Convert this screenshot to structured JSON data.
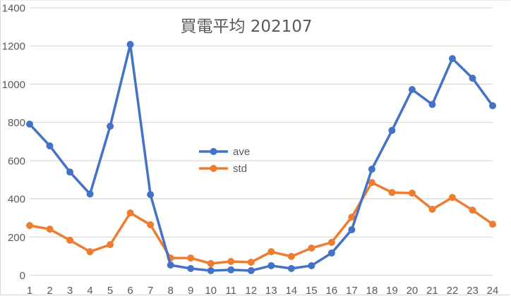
{
  "chart_data": {
    "type": "line",
    "title": "買電平均 202107",
    "xlabel": "",
    "ylabel": "",
    "categories": [
      "1",
      "2",
      "3",
      "4",
      "5",
      "6",
      "7",
      "8",
      "9",
      "10",
      "11",
      "12",
      "13",
      "14",
      "15",
      "16",
      "17",
      "18",
      "19",
      "20",
      "21",
      "22",
      "23",
      "24"
    ],
    "series": [
      {
        "name": "ave",
        "color": "#4472C4",
        "values": [
          791,
          677,
          540,
          425,
          780,
          1208,
          422,
          53,
          35,
          24,
          28,
          24,
          50,
          35,
          50,
          116,
          238,
          555,
          758,
          972,
          894,
          1134,
          1031,
          887
        ]
      },
      {
        "name": "std",
        "color": "#ED7D31",
        "values": [
          260,
          241,
          183,
          123,
          160,
          326,
          264,
          90,
          90,
          61,
          72,
          68,
          123,
          98,
          142,
          172,
          304,
          485,
          433,
          430,
          345,
          407,
          341,
          267
        ]
      }
    ],
    "ylim": [
      0,
      1400
    ],
    "yticks": [
      0,
      200,
      400,
      600,
      800,
      1000,
      1200,
      1400
    ],
    "grid": true,
    "legend_position": "inside-center-left",
    "markers": true
  }
}
